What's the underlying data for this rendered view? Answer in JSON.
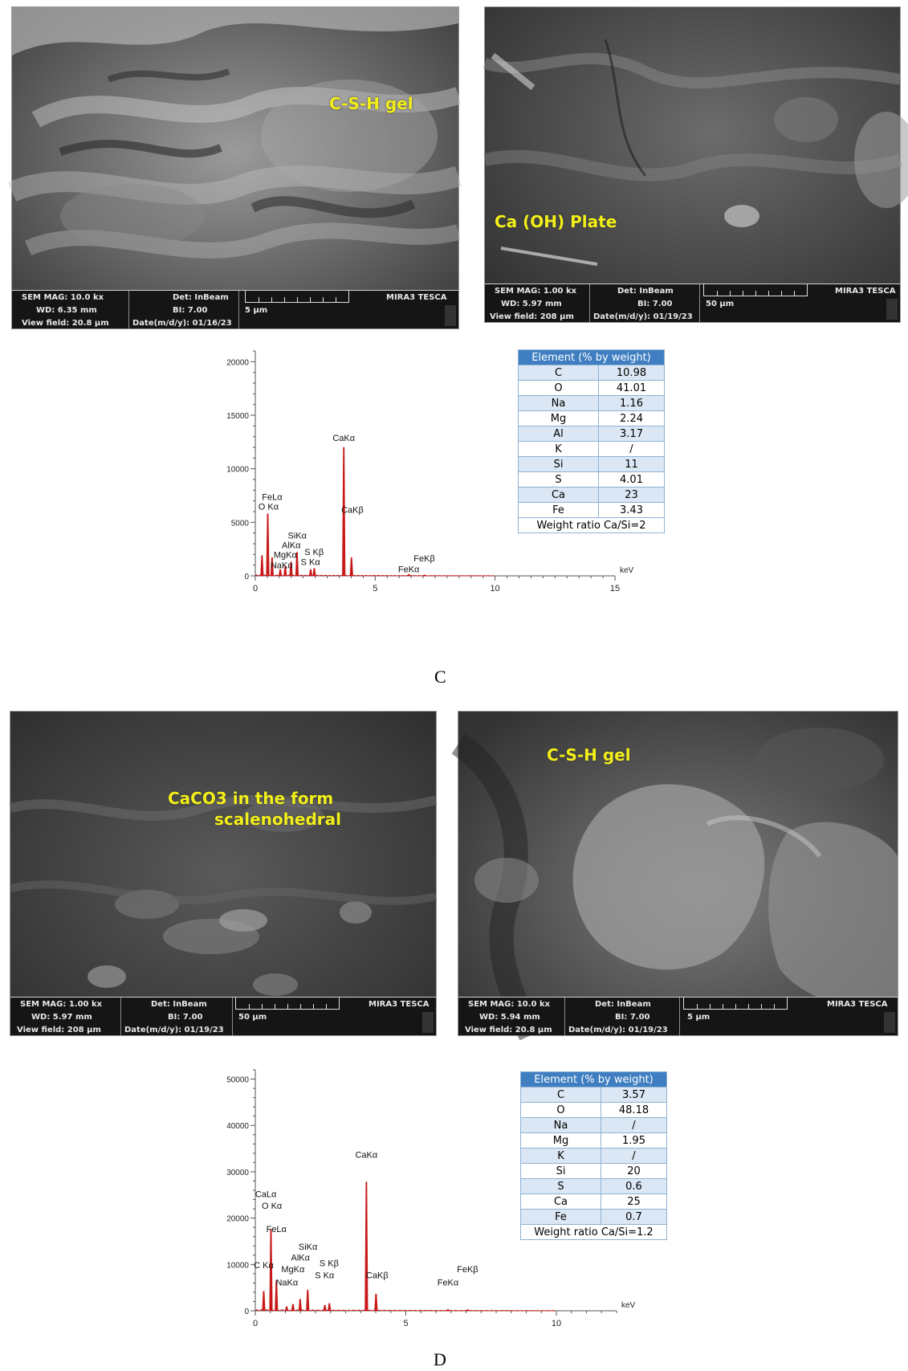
{
  "colors": {
    "peak": "#c81818",
    "label_yellow": "#f2ee1a",
    "table_header": "#3f7fc1",
    "table_band": "#dbe7f4"
  },
  "figure_c": {
    "sem_left": {
      "label": "C-S-H gel",
      "mag": "SEM MAG: 10.0 kx",
      "det": "Det: InBeam",
      "brand": "MIRA3 TESCA",
      "wd": "WD: 6.35 mm",
      "bi": "BI: 7.00",
      "scale": "5 μm",
      "view": "View field: 20.8 μm",
      "date": "Date(m/d/y): 01/16/23"
    },
    "sem_right": {
      "label": "Ca (OH) Plate",
      "mag": "SEM MAG: 1.00 kx",
      "det": "Det: InBeam",
      "brand": "MIRA3 TESCA",
      "wd": "WD: 5.97 mm",
      "bi": "BI: 7.00",
      "scale": "50 μm",
      "view": "View field: 208 μm",
      "date": "Date(m/d/y): 01/19/23"
    },
    "table": {
      "header": "Element (% by weight)",
      "rows": [
        [
          "C",
          "10.98"
        ],
        [
          "O",
          "41.01"
        ],
        [
          "Na",
          "1.16"
        ],
        [
          "Mg",
          "2.24"
        ],
        [
          "Al",
          "3.17"
        ],
        [
          "K",
          "/"
        ],
        [
          "Si",
          "11"
        ],
        [
          "S",
          "4.01"
        ],
        [
          "Ca",
          "23"
        ],
        [
          "Fe",
          "3.43"
        ]
      ],
      "footer": "Weight ratio Ca/Si=2"
    },
    "caption": "C"
  },
  "figure_d": {
    "sem_left": {
      "label_line1": "CaCO3 in the form",
      "label_line2": "scalenohedral",
      "mag": "SEM MAG: 1.00 kx",
      "det": "Det: InBeam",
      "brand": "MIRA3 TESCA",
      "wd": "WD: 5.97 mm",
      "bi": "BI: 7.00",
      "scale": "50 μm",
      "view": "View field: 208 μm",
      "date": "Date(m/d/y): 01/19/23"
    },
    "sem_right": {
      "label": "C-S-H gel",
      "mag": "SEM MAG: 10.0 kx",
      "det": "Det: InBeam",
      "brand": "MIRA3 TESCA",
      "wd": "WD: 5.94 mm",
      "bi": "BI: 7.00",
      "scale": "5 μm",
      "view": "View field: 20.8 μm",
      "date": "Date(m/d/y): 01/19/23"
    },
    "table": {
      "header": "Element (% by weight)",
      "rows": [
        [
          "C",
          "3.57"
        ],
        [
          "O",
          "48.18"
        ],
        [
          "Na",
          "/"
        ],
        [
          "Mg",
          "1.95"
        ],
        [
          "K",
          "/"
        ],
        [
          "Si",
          "20"
        ],
        [
          "S",
          "0.6"
        ],
        [
          "Ca",
          "25"
        ],
        [
          "Fe",
          "0.7"
        ]
      ],
      "footer": "Weight ratio Ca/Si=1.2"
    },
    "caption": "D"
  },
  "chart_data": [
    {
      "type": "line",
      "xlabel": "keV",
      "xlim": [
        0,
        15
      ],
      "ylim": [
        0,
        21000
      ],
      "xticks": [
        0,
        5,
        10,
        15
      ],
      "yticks": [
        0,
        5000,
        10000,
        15000,
        20000
      ],
      "peaks": [
        {
          "x": 0.28,
          "y": 1900
        },
        {
          "x": 0.52,
          "y": 5800
        },
        {
          "x": 0.7,
          "y": 1700
        },
        {
          "x": 1.04,
          "y": 600
        },
        {
          "x": 1.25,
          "y": 900
        },
        {
          "x": 1.49,
          "y": 1300
        },
        {
          "x": 1.74,
          "y": 2200
        },
        {
          "x": 2.31,
          "y": 600
        },
        {
          "x": 2.46,
          "y": 700
        },
        {
          "x": 3.69,
          "y": 12000
        },
        {
          "x": 4.01,
          "y": 1700
        },
        {
          "x": 6.4,
          "y": 150
        },
        {
          "x": 7.06,
          "y": 100
        }
      ],
      "annotations": [
        {
          "text": "CaKα",
          "x": 3.69,
          "y": 12600
        },
        {
          "text": "CaKβ",
          "x": 4.05,
          "y": 5900
        },
        {
          "text": "FeLα",
          "x": 0.7,
          "y": 7100
        },
        {
          "text": "O Kα",
          "x": 0.55,
          "y": 6200
        },
        {
          "text": "SiKα",
          "x": 1.75,
          "y": 3500
        },
        {
          "text": "AlKα",
          "x": 1.5,
          "y": 2600
        },
        {
          "text": "MgKα",
          "x": 1.25,
          "y": 1700
        },
        {
          "text": "NaKα",
          "x": 1.1,
          "y": 700
        },
        {
          "text": "S Kβ",
          "x": 2.45,
          "y": 1950
        },
        {
          "text": "S Kα",
          "x": 2.3,
          "y": 1000
        },
        {
          "text": "FeKβ",
          "x": 7.05,
          "y": 1350
        },
        {
          "text": "FeKα",
          "x": 6.4,
          "y": 350
        }
      ]
    },
    {
      "type": "line",
      "xlabel": "keV",
      "xlim": [
        0,
        12
      ],
      "ylim": [
        0,
        52000
      ],
      "xticks": [
        0,
        5,
        10
      ],
      "yticks": [
        0,
        10000,
        20000,
        30000,
        40000,
        50000
      ],
      "peaks": [
        {
          "x": 0.28,
          "y": 4200
        },
        {
          "x": 0.52,
          "y": 17500
        },
        {
          "x": 0.7,
          "y": 6500
        },
        {
          "x": 1.04,
          "y": 900
        },
        {
          "x": 1.25,
          "y": 1400
        },
        {
          "x": 1.49,
          "y": 2500
        },
        {
          "x": 1.74,
          "y": 4500
        },
        {
          "x": 2.31,
          "y": 1200
        },
        {
          "x": 2.46,
          "y": 1600
        },
        {
          "x": 3.69,
          "y": 27800
        },
        {
          "x": 4.01,
          "y": 3600
        },
        {
          "x": 6.4,
          "y": 300
        },
        {
          "x": 7.06,
          "y": 250
        }
      ],
      "annotations": [
        {
          "text": "CaKα",
          "x": 3.69,
          "y": 33000
        },
        {
          "text": "CaLα",
          "x": 0.35,
          "y": 24500
        },
        {
          "text": "O Kα",
          "x": 0.55,
          "y": 22000
        },
        {
          "text": "FeLα",
          "x": 0.7,
          "y": 17000
        },
        {
          "text": "C Kα",
          "x": 0.28,
          "y": 9200
        },
        {
          "text": "SiKα",
          "x": 1.75,
          "y": 13200
        },
        {
          "text": "AlKα",
          "x": 1.5,
          "y": 10800
        },
        {
          "text": "MgKα",
          "x": 1.25,
          "y": 8300
        },
        {
          "text": "NaKα",
          "x": 1.05,
          "y": 5500
        },
        {
          "text": "S Kβ",
          "x": 2.45,
          "y": 9600
        },
        {
          "text": "S Kα",
          "x": 2.3,
          "y": 7000
        },
        {
          "text": "CaKβ",
          "x": 4.05,
          "y": 7000
        },
        {
          "text": "FeKβ",
          "x": 7.05,
          "y": 8300
        },
        {
          "text": "FeKα",
          "x": 6.4,
          "y": 5500
        }
      ]
    }
  ]
}
